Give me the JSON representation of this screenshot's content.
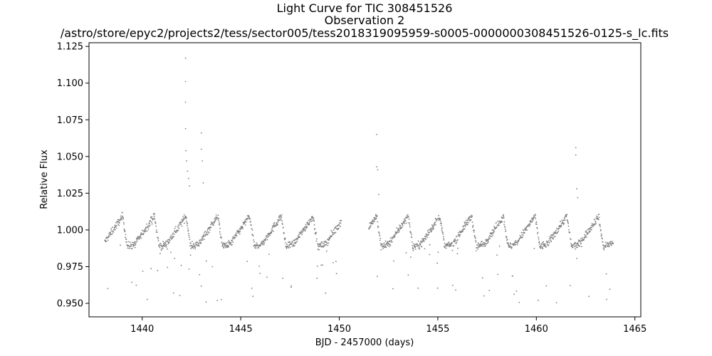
{
  "chart_data": {
    "type": "scatter",
    "title": "Light Curve for TIC 308451526",
    "subtitle": "Observation 2",
    "subtitle2": "/astro/store/epyc2/projects2/tess/sector005/tess2018319095959-s0005-0000000308451526-0125-s_lc.fits",
    "xlabel": "BJD - 2457000 (days)",
    "ylabel": "Relative Flux",
    "xlim": [
      1437.3,
      1465.3
    ],
    "ylim": [
      0.9408,
      1.1275
    ],
    "xticks": [
      1440,
      1445,
      1450,
      1455,
      1460,
      1465
    ],
    "xtick_labels": [
      "1440",
      "1445",
      "1450",
      "1455",
      "1460",
      "1465"
    ],
    "yticks": [
      0.95,
      0.975,
      1.0,
      1.025,
      1.05,
      1.075,
      1.1,
      1.125
    ],
    "ytick_labels": [
      "0.950",
      "0.975",
      "1.000",
      "1.025",
      "1.050",
      "1.075",
      "1.100",
      "1.125"
    ],
    "grid": false,
    "marker_color": "#808080",
    "segments": [
      [
        1438.1,
        1450.1
      ],
      [
        1451.5,
        1463.9
      ]
    ],
    "period_days": 1.61,
    "phase_anchor_x": 1439.65,
    "amplitude": 0.0095,
    "dips_depth": 0.045,
    "flares": [
      {
        "x": 1442.2,
        "y": 1.117
      },
      {
        "x": 1442.2,
        "y": 1.101
      },
      {
        "x": 1442.2,
        "y": 1.087
      },
      {
        "x": 1442.2,
        "y": 1.069
      },
      {
        "x": 1442.22,
        "y": 1.054
      },
      {
        "x": 1442.25,
        "y": 1.047
      },
      {
        "x": 1442.3,
        "y": 1.04
      },
      {
        "x": 1442.35,
        "y": 1.035
      },
      {
        "x": 1442.4,
        "y": 1.03
      },
      {
        "x": 1443.0,
        "y": 1.066
      },
      {
        "x": 1443.0,
        "y": 1.055
      },
      {
        "x": 1443.05,
        "y": 1.047
      },
      {
        "x": 1443.1,
        "y": 1.032
      },
      {
        "x": 1451.9,
        "y": 1.065
      },
      {
        "x": 1451.9,
        "y": 1.043
      },
      {
        "x": 1451.95,
        "y": 1.041
      },
      {
        "x": 1452.0,
        "y": 1.024
      },
      {
        "x": 1462.0,
        "y": 1.056
      },
      {
        "x": 1462.0,
        "y": 1.051
      },
      {
        "x": 1462.05,
        "y": 1.028
      },
      {
        "x": 1462.1,
        "y": 1.022
      }
    ]
  }
}
